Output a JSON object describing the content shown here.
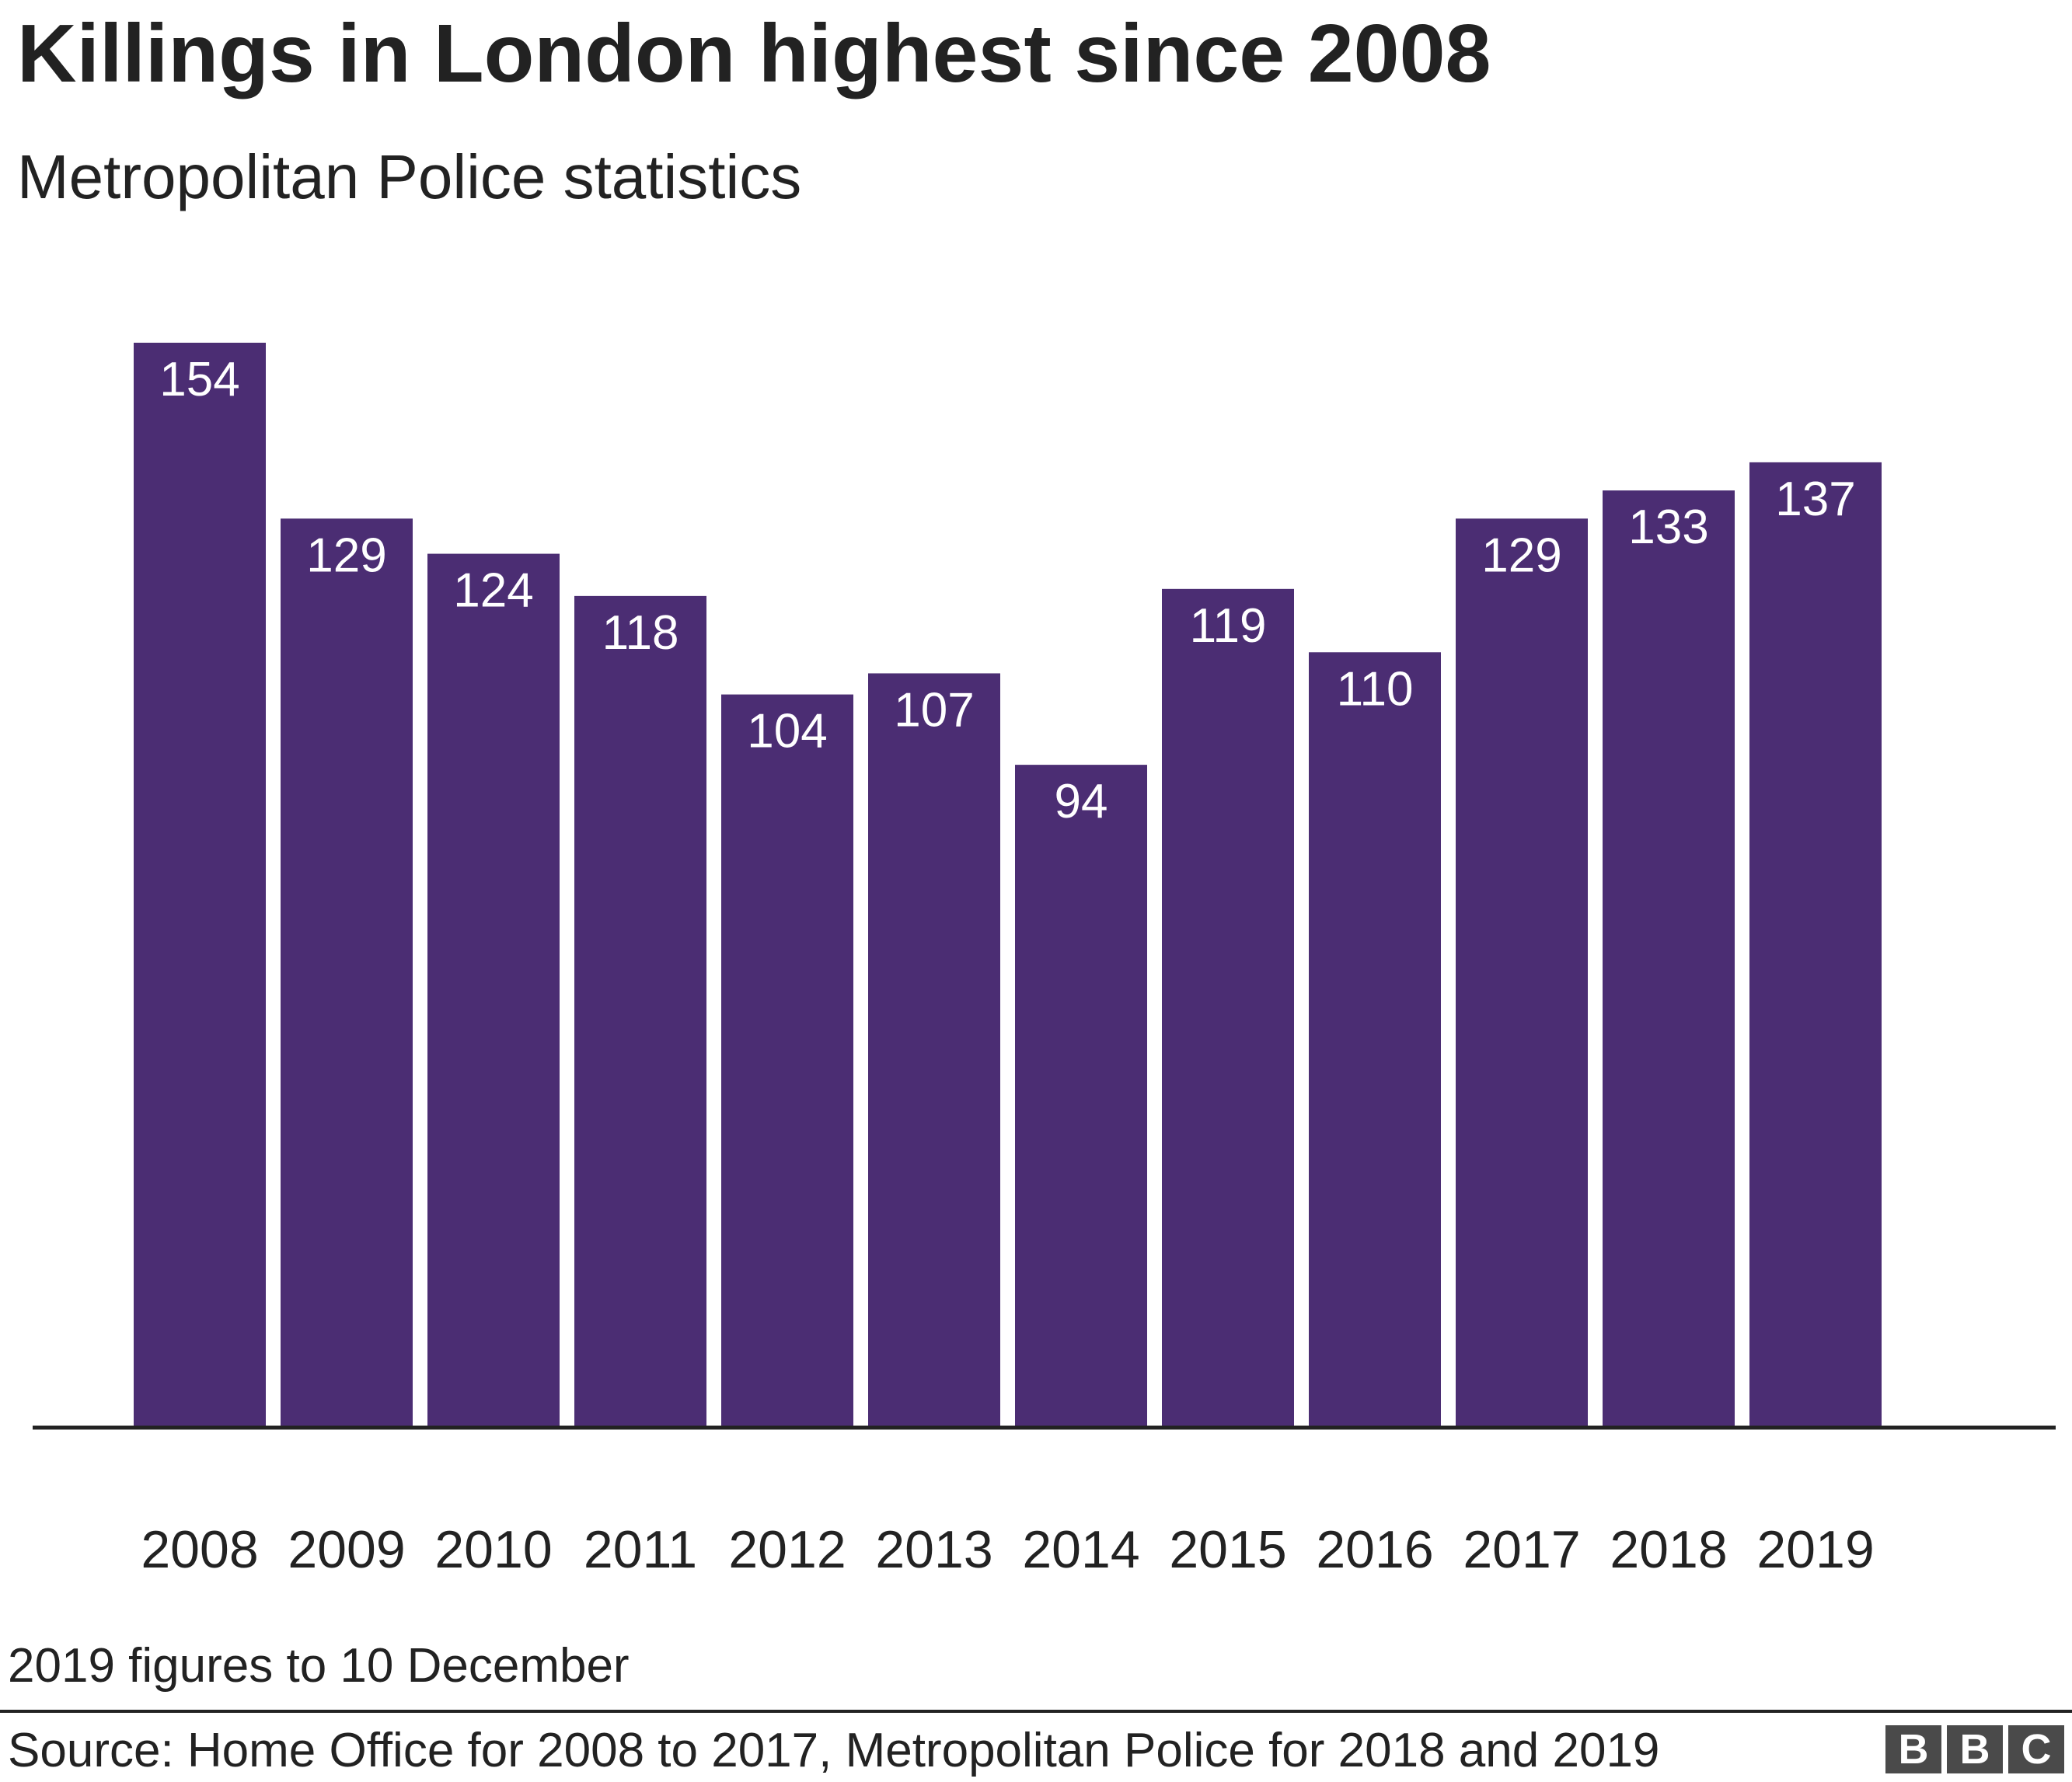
{
  "header": {
    "title": "Killings in London highest since 2008",
    "subtitle": "Metropolitan Police statistics"
  },
  "chart_data": {
    "type": "bar",
    "title": "Killings in London highest since 2008",
    "subtitle": "Metropolitan Police statistics",
    "categories": [
      "2008",
      "2009",
      "2010",
      "2011",
      "2012",
      "2013",
      "2014",
      "2015",
      "2016",
      "2017",
      "2018",
      "2019"
    ],
    "values": [
      154,
      129,
      124,
      118,
      104,
      107,
      94,
      119,
      110,
      129,
      133,
      137
    ],
    "xlabel": "",
    "ylabel": "",
    "ylim": [
      0,
      154
    ],
    "grid": false,
    "data_labels": "inside-top",
    "bar_color": "#4b2d73",
    "axis_color": "#222222"
  },
  "footer": {
    "note": "2019 figures to 10 December",
    "source": "Source: Home Office for 2008 to 2017, Metropolitan Police for 2018 and 2019",
    "logo_letters": [
      "B",
      "B",
      "C"
    ]
  }
}
